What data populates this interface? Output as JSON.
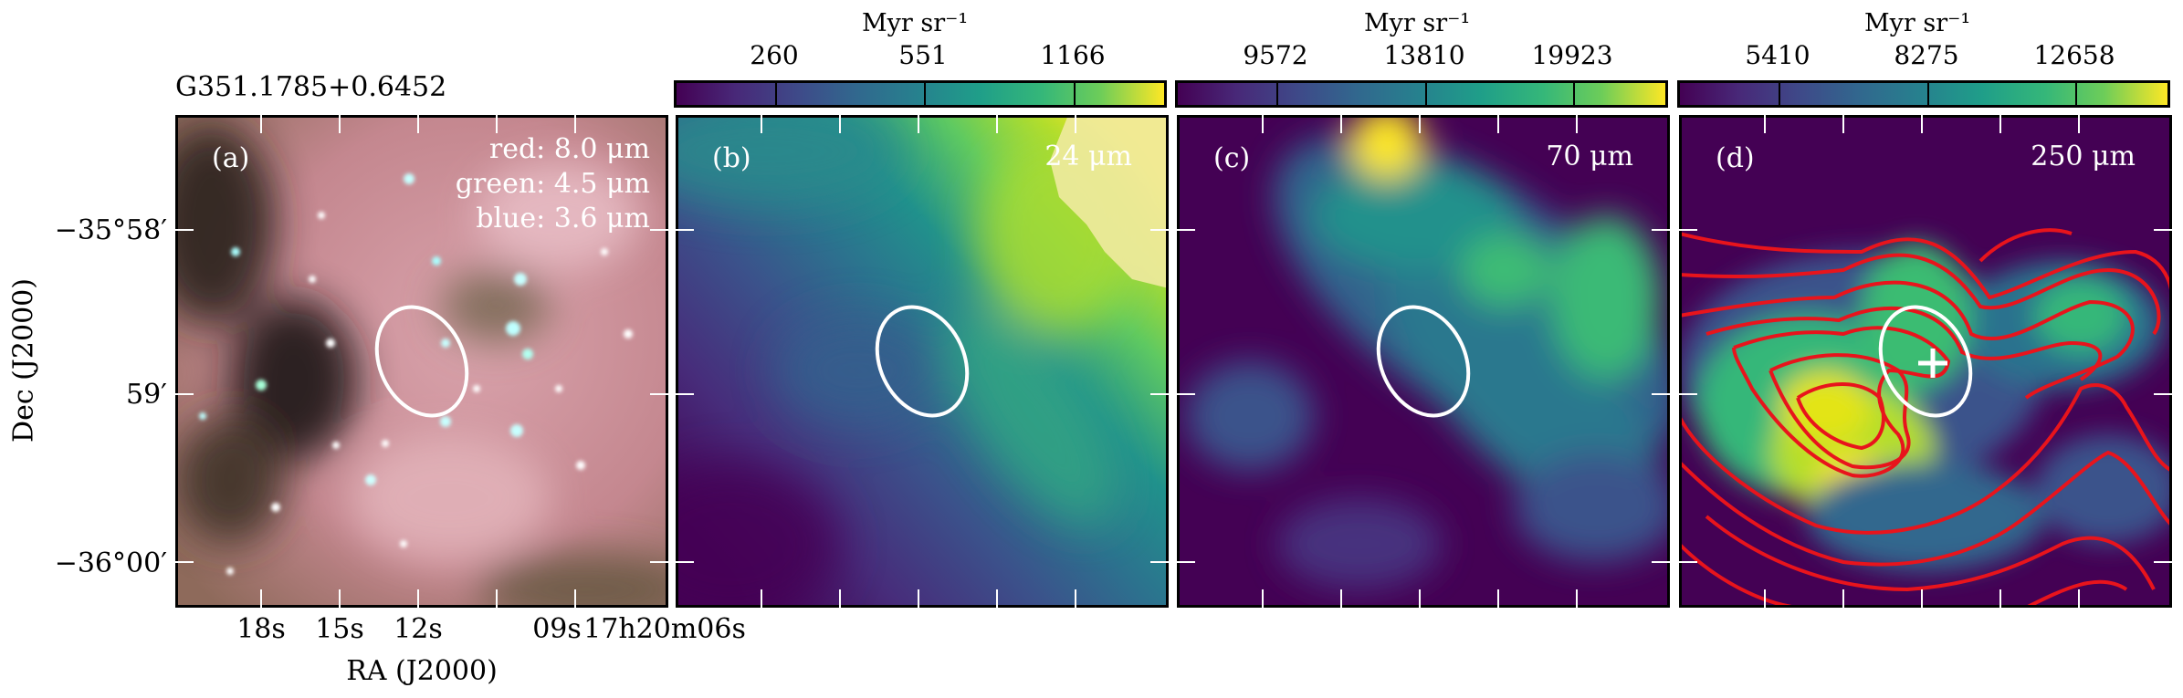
{
  "figure": {
    "source_title": "G351.1785+0.6452",
    "panels": [
      {
        "id": "a",
        "label": "(a)",
        "bands": [
          "red: 8.0 μm",
          "green: 4.5 μm",
          "blue: 3.6 μm"
        ]
      },
      {
        "id": "b",
        "label": "(b)",
        "wavelength": "24 μm",
        "colorbar": {
          "unit": "Myr sr⁻¹",
          "ticks": [
            "260",
            "551",
            "1166"
          ]
        }
      },
      {
        "id": "c",
        "label": "(c)",
        "wavelength": "70 μm",
        "colorbar": {
          "unit": "Myr sr⁻¹",
          "ticks": [
            "9572",
            "13810",
            "19923"
          ]
        }
      },
      {
        "id": "d",
        "label": "(d)",
        "wavelength": "250 μm",
        "colorbar": {
          "unit": "Myr sr⁻¹",
          "ticks": [
            "5410",
            "8275",
            "12658"
          ]
        }
      }
    ],
    "axes": {
      "y_label": "Dec (J2000)",
      "y_ticks": [
        "−35°58′",
        "59′",
        "−36°00′"
      ],
      "x_label": "RA (J2000)",
      "x_ticks": [
        "18s",
        "15s",
        "12s",
        "09s",
        "17h20m06s"
      ]
    },
    "colors": {
      "ellipse": "#ffffff",
      "contours": "#e8141c",
      "marker": "#ffffff",
      "colormap": "viridis"
    }
  }
}
